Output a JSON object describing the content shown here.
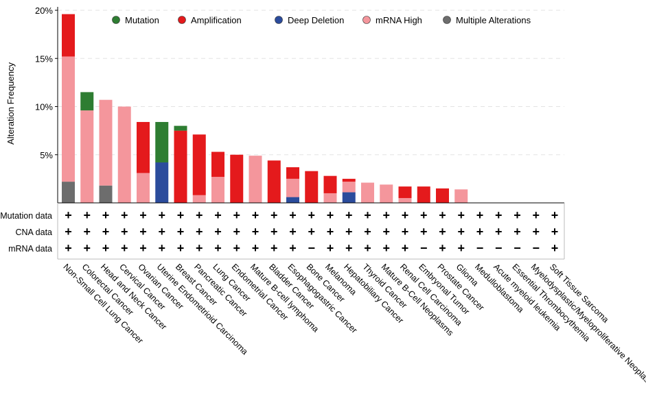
{
  "chart_data": {
    "type": "bar",
    "stacked": true,
    "ylabel": "Alteration Frequency",
    "ylim": [
      0,
      20
    ],
    "yticks": [
      5,
      10,
      15,
      20
    ],
    "ytick_labels": [
      "5%",
      "10%",
      "15%",
      "20%"
    ],
    "legend": {
      "placement": "top",
      "entries": [
        {
          "name": "Mutation",
          "color": "#2e7d32"
        },
        {
          "name": "Amplification",
          "color": "#e41a1c"
        },
        {
          "name": "Deep Deletion",
          "color": "#2b4c9c"
        },
        {
          "name": "mRNA High",
          "color": "#f4969c"
        },
        {
          "name": "Multiple Alterations",
          "color": "#6d6d6d"
        }
      ]
    },
    "categories": [
      "Non-Small Cell Lung Cancer",
      "Colorectal Cancer",
      "Head and Neck Cancer",
      "Cervical Cancer",
      "Ovarian Cancer",
      "Uterine Endometrioid Carcinoma",
      "Breast Cancer",
      "Pancreatic Cancer",
      "Lung Cancer",
      "Endometrial Cancer",
      "Mature B-cell lymphoma",
      "Bladder Cancer",
      "Esophagogastric Cancer",
      "Bone Cancer",
      "Melanoma",
      "Hepatobiliary Cancer",
      "Thyroid Cancer",
      "Mature B-Cell Neoplasms",
      "Renal Cell Carcinoma",
      "Embryonal Tumor",
      "Prostate Cancer",
      "Glioma",
      "Medulloblastoma",
      "Acute myeloid leukemia",
      "Essential Thrombocythemia",
      "Myelodysplastic/Myeloproliferative Neoplasms",
      "Soft Tissue Sarcoma"
    ],
    "series": [
      {
        "name": "Multiple Alterations",
        "values": [
          2.2,
          0,
          1.8,
          0,
          0,
          0,
          0,
          0,
          0,
          0,
          0,
          0,
          0,
          0,
          0,
          0,
          0,
          0,
          0,
          0,
          0,
          0,
          0,
          0,
          0,
          0,
          0
        ]
      },
      {
        "name": "Deep Deletion",
        "values": [
          0,
          0,
          0,
          0,
          0,
          4.2,
          0,
          0,
          0,
          0,
          0,
          0,
          0.6,
          0,
          0,
          1.1,
          0,
          0,
          0,
          0,
          0,
          0,
          0,
          0,
          0,
          0,
          0
        ]
      },
      {
        "name": "mRNA High",
        "values": [
          13.0,
          9.6,
          8.9,
          10.0,
          3.1,
          0,
          0,
          0.8,
          2.7,
          0,
          4.9,
          0,
          1.9,
          0,
          1.0,
          1.1,
          2.1,
          1.9,
          0.5,
          0,
          0,
          1.4,
          0,
          0,
          0,
          0,
          0
        ]
      },
      {
        "name": "Amplification",
        "values": [
          4.4,
          0,
          0,
          0,
          5.3,
          0,
          7.5,
          6.3,
          2.6,
          5.0,
          0,
          4.4,
          1.2,
          3.3,
          1.8,
          0.3,
          0,
          0,
          1.2,
          1.7,
          1.5,
          0,
          0,
          0,
          0,
          0,
          0
        ]
      },
      {
        "name": "Mutation",
        "values": [
          0,
          1.9,
          0,
          0,
          0,
          4.2,
          0.5,
          0,
          0,
          0,
          0,
          0,
          0,
          0,
          0,
          0,
          0,
          0,
          0,
          0,
          0,
          0,
          0,
          0,
          0,
          0,
          0
        ]
      }
    ],
    "profiling": {
      "rows": [
        "Mutation data",
        "CNA data",
        "mRNA data"
      ],
      "values": [
        [
          "+",
          "+",
          "+",
          "+",
          "+",
          "+",
          "+",
          "+",
          "+",
          "+",
          "+",
          "+",
          "+",
          "+",
          "+",
          "+",
          "+",
          "+",
          "+",
          "+",
          "+",
          "+",
          "+",
          "+",
          "+",
          "+",
          "+"
        ],
        [
          "+",
          "+",
          "+",
          "+",
          "+",
          "+",
          "+",
          "+",
          "+",
          "+",
          "+",
          "+",
          "+",
          "+",
          "+",
          "+",
          "+",
          "+",
          "+",
          "+",
          "+",
          "+",
          "+",
          "+",
          "+",
          "+",
          "+"
        ],
        [
          "+",
          "+",
          "+",
          "+",
          "+",
          "+",
          "+",
          "+",
          "+",
          "+",
          "+",
          "+",
          "+",
          "−",
          "+",
          "+",
          "+",
          "+",
          "+",
          "−",
          "+",
          "+",
          "−",
          "−",
          "−",
          "−",
          "+"
        ]
      ]
    }
  }
}
